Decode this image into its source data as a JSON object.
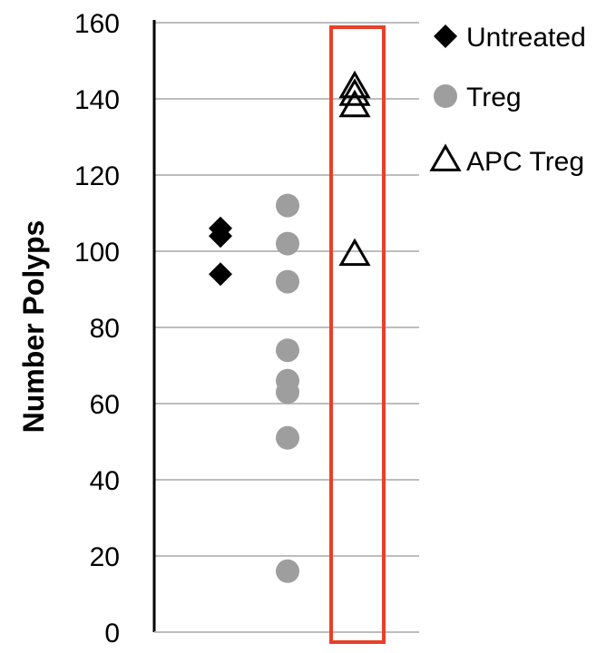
{
  "chart_data": {
    "type": "scatter",
    "title": "",
    "xlabel": "",
    "ylabel": "Number Polyps",
    "ylim": [
      0,
      160
    ],
    "yticks": [
      0,
      20,
      40,
      60,
      80,
      100,
      120,
      140,
      160
    ],
    "grid": true,
    "legend": "right",
    "highlight_box": {
      "series": "APC Treg",
      "color": "#e8402a"
    },
    "series": [
      {
        "name": "Untreated",
        "marker": "diamond",
        "color": "#000000",
        "values": [
          106,
          104,
          94
        ]
      },
      {
        "name": "Treg",
        "marker": "circle",
        "color": "#9e9e9e",
        "values": [
          112,
          102,
          92,
          74,
          66,
          63,
          51,
          16
        ]
      },
      {
        "name": "APC Treg",
        "marker": "triangle-open",
        "color": "#000000",
        "values": [
          143,
          141,
          138,
          99
        ]
      }
    ]
  }
}
